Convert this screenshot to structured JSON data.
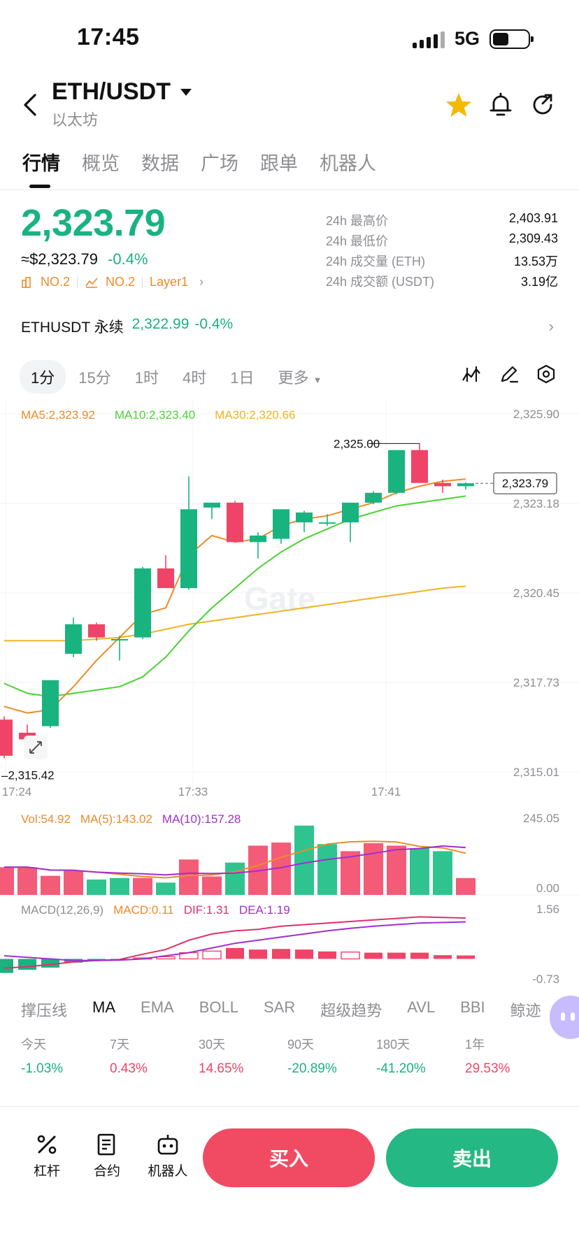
{
  "status_bar": {
    "time": "17:45",
    "network": "5G"
  },
  "header": {
    "pair": "ETH/USDT",
    "name": "以太坊"
  },
  "tabs": [
    "行情",
    "概览",
    "数据",
    "广场",
    "跟单",
    "机器人"
  ],
  "price": {
    "last": "2,323.79",
    "usd_approx": "≈$2,323.79",
    "change": "-0.4%",
    "badges": [
      "NO.2",
      "NO.2",
      "Layer1"
    ]
  },
  "stats": [
    {
      "label": "24h 最高价",
      "value": "2,403.91"
    },
    {
      "label": "24h 最低价",
      "value": "2,309.43"
    },
    {
      "label": "24h 成交量 (ETH)",
      "value": "13.53万"
    },
    {
      "label": "24h 成交额 (USDT)",
      "value": "3.19亿"
    }
  ],
  "perpetual": {
    "label": "ETHUSDT 永续",
    "price": "2,322.99",
    "change": "-0.4%"
  },
  "timeframes": [
    "1分",
    "15分",
    "1时",
    "4时",
    "1日",
    "更多"
  ],
  "ma_legend": {
    "ma5": "MA5:2,323.92",
    "ma10": "MA10:2,323.40",
    "ma30": "MA30:2,320.66"
  },
  "price_axis": [
    "2,325.90",
    "2,323.18",
    "2,320.45",
    "2,317.73",
    "2,315.01"
  ],
  "time_axis": [
    "17:24",
    "17:33",
    "17:41"
  ],
  "high_label": "2,325.00",
  "low_label": "2,315.42",
  "current_tag": "2,323.79",
  "watermark": "Gate",
  "vol_legend": {
    "vol": "Vol:54.92",
    "ma5": "MA(5):143.02",
    "ma10": "MA(10):157.28"
  },
  "vol_axis": [
    "245.05",
    "0.00"
  ],
  "macd_legend": {
    "title": "MACD(12,26,9)",
    "macd": "MACD:0.11",
    "dif": "DIF:1.31",
    "dea": "DEA:1.19"
  },
  "macd_axis": [
    "1.56",
    "-0.73"
  ],
  "indicators": [
    "撑压线",
    "MA",
    "EMA",
    "BOLL",
    "SAR",
    "超级趋势",
    "AVL",
    "BBI",
    "鲸迹"
  ],
  "performance": [
    {
      "label": "今天",
      "value": "-1.03%",
      "dir": "down"
    },
    {
      "label": "7天",
      "value": "0.43%",
      "dir": "up"
    },
    {
      "label": "30天",
      "value": "14.65%",
      "dir": "up"
    },
    {
      "label": "90天",
      "value": "-20.89%",
      "dir": "down"
    },
    {
      "label": "180天",
      "value": "-41.20%",
      "dir": "down"
    },
    {
      "label": "1年",
      "value": "29.53%",
      "dir": "up"
    }
  ],
  "bottom": {
    "leverage": "杠杆",
    "contract": "合约",
    "bot": "机器人",
    "buy": "买入",
    "sell": "卖出"
  },
  "colors": {
    "up": "#19b37f",
    "down": "#ef4467",
    "ma5": "#ee8a2a",
    "ma10": "#4cd137",
    "ma30": "#f0b323"
  },
  "candles": [
    {
      "o": 2316.6,
      "h": 2316.7,
      "l": 2315.42,
      "c": 2315.5
    },
    {
      "o": 2316.2,
      "h": 2316.45,
      "l": 2315.6,
      "c": 2316.0
    },
    {
      "o": 2316.4,
      "h": 2317.8,
      "l": 2316.35,
      "c": 2317.8
    },
    {
      "o": 2318.6,
      "h": 2319.7,
      "l": 2318.5,
      "c": 2319.5
    },
    {
      "o": 2319.5,
      "h": 2319.55,
      "l": 2319.0,
      "c": 2319.1
    },
    {
      "o": 2319.05,
      "h": 2319.15,
      "l": 2318.4,
      "c": 2319.05
    },
    {
      "o": 2319.1,
      "h": 2321.25,
      "l": 2319.05,
      "c": 2321.2
    },
    {
      "o": 2321.2,
      "h": 2321.6,
      "l": 2320.6,
      "c": 2320.6
    },
    {
      "o": 2320.6,
      "h": 2324.0,
      "l": 2320.55,
      "c": 2323.0
    },
    {
      "o": 2323.05,
      "h": 2323.2,
      "l": 2322.7,
      "c": 2323.2
    },
    {
      "o": 2323.2,
      "h": 2323.25,
      "l": 2322.0,
      "c": 2322.0
    },
    {
      "o": 2322.0,
      "h": 2322.3,
      "l": 2321.5,
      "c": 2322.2
    },
    {
      "o": 2322.1,
      "h": 2323.0,
      "l": 2321.95,
      "c": 2323.0
    },
    {
      "o": 2322.6,
      "h": 2322.95,
      "l": 2322.3,
      "c": 2322.9
    },
    {
      "o": 2322.6,
      "h": 2322.85,
      "l": 2322.5,
      "c": 2322.6
    },
    {
      "o": 2322.6,
      "h": 2323.2,
      "l": 2322.0,
      "c": 2323.2
    },
    {
      "o": 2323.2,
      "h": 2323.55,
      "l": 2323.15,
      "c": 2323.5
    },
    {
      "o": 2323.5,
      "h": 2324.8,
      "l": 2323.45,
      "c": 2324.8
    },
    {
      "o": 2324.8,
      "h": 2325.0,
      "l": 2323.8,
      "c": 2323.8
    },
    {
      "o": 2323.8,
      "h": 2323.9,
      "l": 2323.5,
      "c": 2323.7
    },
    {
      "o": 2323.7,
      "h": 2323.82,
      "l": 2323.6,
      "c": 2323.79
    }
  ],
  "ma5_series": [
    2317.0,
    2316.8,
    2316.9,
    2317.6,
    2318.4,
    2319.1,
    2319.8,
    2320.0,
    2321.6,
    2322.2,
    2322.0,
    2322.1,
    2322.5,
    2322.7,
    2322.8,
    2323.0,
    2323.2,
    2323.5,
    2323.7,
    2323.85,
    2323.92
  ],
  "ma10_series": [
    2317.7,
    2317.4,
    2317.3,
    2317.4,
    2317.5,
    2317.6,
    2317.9,
    2318.5,
    2319.3,
    2320.0,
    2320.6,
    2321.2,
    2321.7,
    2322.1,
    2322.4,
    2322.7,
    2322.9,
    2323.1,
    2323.2,
    2323.3,
    2323.4
  ],
  "ma30_series": [
    2319.0,
    2319.0,
    2319.0,
    2319.0,
    2319.05,
    2319.1,
    2319.2,
    2319.35,
    2319.5,
    2319.6,
    2319.7,
    2319.8,
    2319.9,
    2320.0,
    2320.1,
    2320.2,
    2320.3,
    2320.4,
    2320.5,
    2320.6,
    2320.66
  ],
  "volumes": [
    {
      "v": 90,
      "up": false
    },
    {
      "v": 90,
      "up": false
    },
    {
      "v": 62,
      "up": false
    },
    {
      "v": 78,
      "up": false
    },
    {
      "v": 50,
      "up": true
    },
    {
      "v": 55,
      "up": true
    },
    {
      "v": 55,
      "up": false
    },
    {
      "v": 40,
      "up": true
    },
    {
      "v": 115,
      "up": false
    },
    {
      "v": 60,
      "up": false
    },
    {
      "v": 105,
      "up": true
    },
    {
      "v": 160,
      "up": false
    },
    {
      "v": 170,
      "up": false
    },
    {
      "v": 225,
      "up": true
    },
    {
      "v": 165,
      "up": true
    },
    {
      "v": 142,
      "up": false
    },
    {
      "v": 168,
      "up": false
    },
    {
      "v": 160,
      "up": false
    },
    {
      "v": 152,
      "up": true
    },
    {
      "v": 142,
      "up": true
    },
    {
      "v": 54.92,
      "up": false
    }
  ],
  "macd_hist": [
    -0.45,
    -0.35,
    -0.28,
    -0.12,
    -0.05,
    -0.02,
    0.03,
    0.07,
    0.2,
    0.25,
    0.35,
    0.3,
    0.32,
    0.3,
    0.24,
    0.22,
    0.2,
    0.2,
    0.2,
    0.12,
    0.11
  ],
  "dif_series": [
    -0.3,
    -0.25,
    -0.18,
    -0.1,
    -0.05,
    -0.02,
    0.15,
    0.3,
    0.6,
    0.8,
    0.9,
    0.95,
    1.05,
    1.1,
    1.15,
    1.2,
    1.25,
    1.3,
    1.35,
    1.33,
    1.31
  ],
  "dea_series": [
    0.1,
    0.05,
    0.0,
    -0.05,
    -0.05,
    -0.04,
    0.0,
    0.1,
    0.2,
    0.35,
    0.5,
    0.6,
    0.7,
    0.8,
    0.9,
    0.98,
    1.05,
    1.1,
    1.15,
    1.17,
    1.19
  ]
}
